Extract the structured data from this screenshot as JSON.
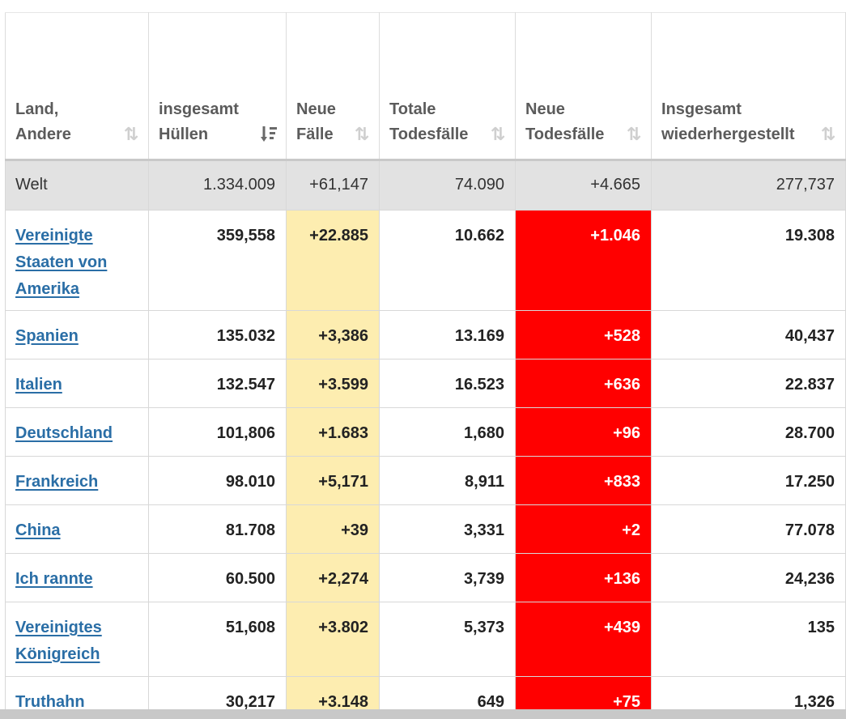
{
  "columns": [
    {
      "line1": "Land,",
      "line2": "Andere",
      "sort_icon": "sort-arrows-icon"
    },
    {
      "line1": "insgesamt",
      "line2": "Hüllen",
      "sort_icon": "sort-desc-active-icon"
    },
    {
      "line1": "Neue",
      "line2": "Fälle",
      "sort_icon": "sort-arrows-icon"
    },
    {
      "line1": "Totale",
      "line2": "Todesfälle",
      "sort_icon": "sort-arrows-icon"
    },
    {
      "line1": "Neue",
      "line2": "Todesfälle",
      "sort_icon": "sort-arrows-icon"
    },
    {
      "line1": "Insgesamt",
      "line2": "wiederhergestellt",
      "sort_icon": "sort-arrows-icon"
    }
  ],
  "world": {
    "country": "Welt",
    "total_cases": "1.334.009",
    "new_cases": "+61,147",
    "total_deaths": "74.090",
    "new_deaths": "+4.665",
    "total_recovered": "277,737"
  },
  "rows": [
    {
      "country": "Vereinigte Staaten von Amerika",
      "total_cases": "359,558",
      "new_cases": "+22.885",
      "total_deaths": "10.662",
      "new_deaths": "+1.046",
      "total_recovered": "19.308"
    },
    {
      "country": "Spanien",
      "total_cases": "135.032",
      "new_cases": "+3,386",
      "total_deaths": "13.169",
      "new_deaths": "+528",
      "total_recovered": "40,437"
    },
    {
      "country": "Italien",
      "total_cases": "132.547",
      "new_cases": "+3.599",
      "total_deaths": "16.523",
      "new_deaths": "+636",
      "total_recovered": "22.837"
    },
    {
      "country": "Deutschland",
      "total_cases": "101,806",
      "new_cases": "+1.683",
      "total_deaths": "1,680",
      "new_deaths": "+96",
      "total_recovered": "28.700"
    },
    {
      "country": "Frankreich",
      "total_cases": "98.010",
      "new_cases": "+5,171",
      "total_deaths": "8,911",
      "new_deaths": "+833",
      "total_recovered": "17.250"
    },
    {
      "country": "China",
      "total_cases": "81.708",
      "new_cases": "+39",
      "total_deaths": "3,331",
      "new_deaths": "+2",
      "total_recovered": "77.078"
    },
    {
      "country": "Ich rannte",
      "total_cases": "60.500",
      "new_cases": "+2,274",
      "total_deaths": "3,739",
      "new_deaths": "+136",
      "total_recovered": "24,236"
    },
    {
      "country": "Vereinigtes Königreich",
      "total_cases": "51,608",
      "new_cases": "+3.802",
      "total_deaths": "5,373",
      "new_deaths": "+439",
      "total_recovered": "135"
    },
    {
      "country": "Truthahn",
      "total_cases": "30,217",
      "new_cases": "+3.148",
      "total_deaths": "649",
      "new_deaths": "+75",
      "total_recovered": "1,326"
    }
  ],
  "colors": {
    "new_cases_bg": "#fdedb0",
    "new_deaths_bg": "#ff0000",
    "world_row_bg": "#e2e2e2",
    "link": "#2a6ea6"
  }
}
